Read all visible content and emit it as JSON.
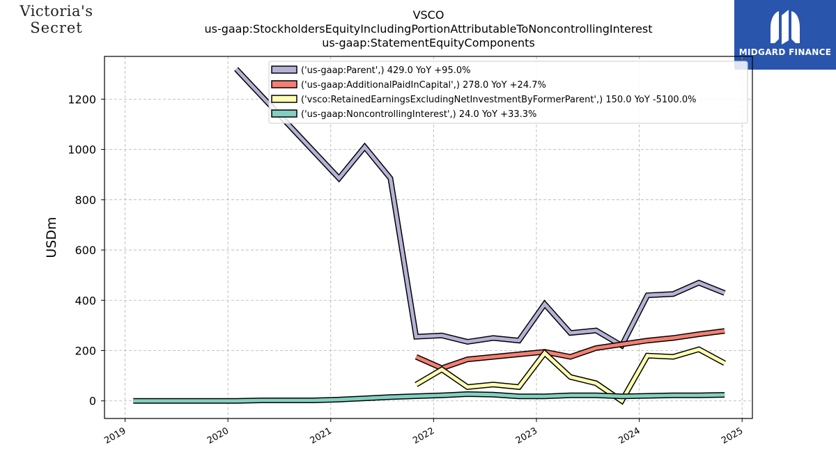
{
  "logos": {
    "left_line1": "Victoria's",
    "left_line2": "Secret",
    "right_brand": "MIDGARD FINANCE"
  },
  "chart_data": {
    "type": "line",
    "title": [
      "VSCO",
      "us-gaap:StockholdersEquityIncludingPortionAttributableToNoncontrollingInterest",
      "us-gaap:StatementEquityComponents"
    ],
    "xlabel": "",
    "ylabel": "USDm",
    "xlim": [
      2018.8,
      2025.1
    ],
    "ylim": [
      -70,
      1370
    ],
    "x_ticks": [
      2019,
      2020,
      2021,
      2022,
      2023,
      2024,
      2025
    ],
    "y_ticks": [
      0,
      200,
      400,
      600,
      800,
      1000,
      1200
    ],
    "grid": true,
    "legend_position": "top-right",
    "series": [
      {
        "name": "('us-gaap:Parent',) 429.0 YoY +95.0%",
        "color": "#b4b2d6",
        "x": [
          2020.08,
          2021.08,
          2021.33,
          2021.58,
          2021.83,
          2022.08,
          2022.33,
          2022.58,
          2022.83,
          2023.08,
          2023.33,
          2023.58,
          2023.83,
          2024.08,
          2024.33,
          2024.58,
          2024.83
        ],
        "y": [
          1320,
          885,
          1010,
          885,
          255,
          260,
          235,
          250,
          240,
          385,
          270,
          280,
          220,
          420,
          425,
          470,
          429
        ]
      },
      {
        "name": "('us-gaap:AdditionalPaidInCapital',) 278.0 YoY +24.7%",
        "color": "#f47f72",
        "x": [
          2021.83,
          2022.08,
          2022.33,
          2022.58,
          2022.83,
          2023.08,
          2023.33,
          2023.58,
          2023.83,
          2024.08,
          2024.33,
          2024.58,
          2024.83
        ],
        "y": [
          175,
          130,
          165,
          175,
          185,
          195,
          175,
          210,
          225,
          240,
          250,
          265,
          278
        ]
      },
      {
        "name": "('vsco:RetainedEarningsExcludingNetInvestmentByFormerParent',) 150.0 YoY -5100.0%",
        "color": "#ffffb3",
        "x": [
          2021.83,
          2022.08,
          2022.33,
          2022.58,
          2022.83,
          2023.08,
          2023.33,
          2023.58,
          2023.83,
          2024.08,
          2024.33,
          2024.58,
          2024.83
        ],
        "y": [
          65,
          125,
          55,
          65,
          55,
          190,
          95,
          70,
          0,
          180,
          175,
          205,
          150
        ]
      },
      {
        "name": "('us-gaap:NoncontrollingInterest',) 24.0 YoY +33.3%",
        "color": "#83cfc0",
        "x": [
          2019.08,
          2020.08,
          2020.33,
          2020.83,
          2021.08,
          2021.58,
          2022.08,
          2022.33,
          2022.58,
          2022.83,
          2023.08,
          2023.33,
          2023.58,
          2023.83,
          2024.08,
          2024.33,
          2024.58,
          2024.83
        ],
        "y": [
          0,
          0,
          2,
          2,
          5,
          15,
          22,
          27,
          25,
          18,
          18,
          22,
          22,
          18,
          20,
          22,
          22,
          24
        ]
      }
    ]
  }
}
